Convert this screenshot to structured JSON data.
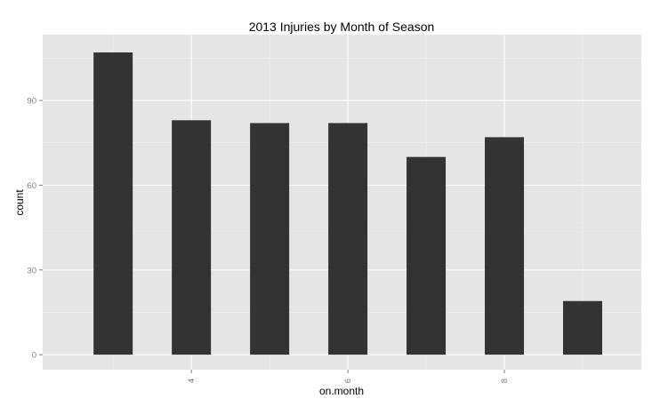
{
  "chart_data": {
    "type": "bar",
    "title": "2013 Injuries by Month of Season",
    "xlabel": "on.month",
    "ylabel": "count",
    "x": [
      3,
      4,
      5,
      6,
      7,
      8,
      9
    ],
    "values": [
      107,
      83,
      82,
      82,
      70,
      77,
      19
    ],
    "xlim": [
      2.1,
      9.75
    ],
    "ylim": [
      -5.3,
      113.3
    ],
    "x_ticks": [
      4,
      6,
      8
    ],
    "x_tick_labels": [
      "4",
      "6",
      "8"
    ],
    "x_tick_label_rotation": "vertical",
    "y_ticks": [
      0,
      30,
      60,
      90
    ],
    "y_tick_labels": [
      "0",
      "30",
      "60",
      "90"
    ],
    "grid": true,
    "legend": "none",
    "bar_width": 0.5,
    "colors": {
      "bar": "#333333",
      "panel_background": "#e5e5e5",
      "grid_major": "#ffffff",
      "grid_minor": "#f2f2f2",
      "tick_text": "#7f7f7f",
      "title_text": "#000000"
    }
  }
}
